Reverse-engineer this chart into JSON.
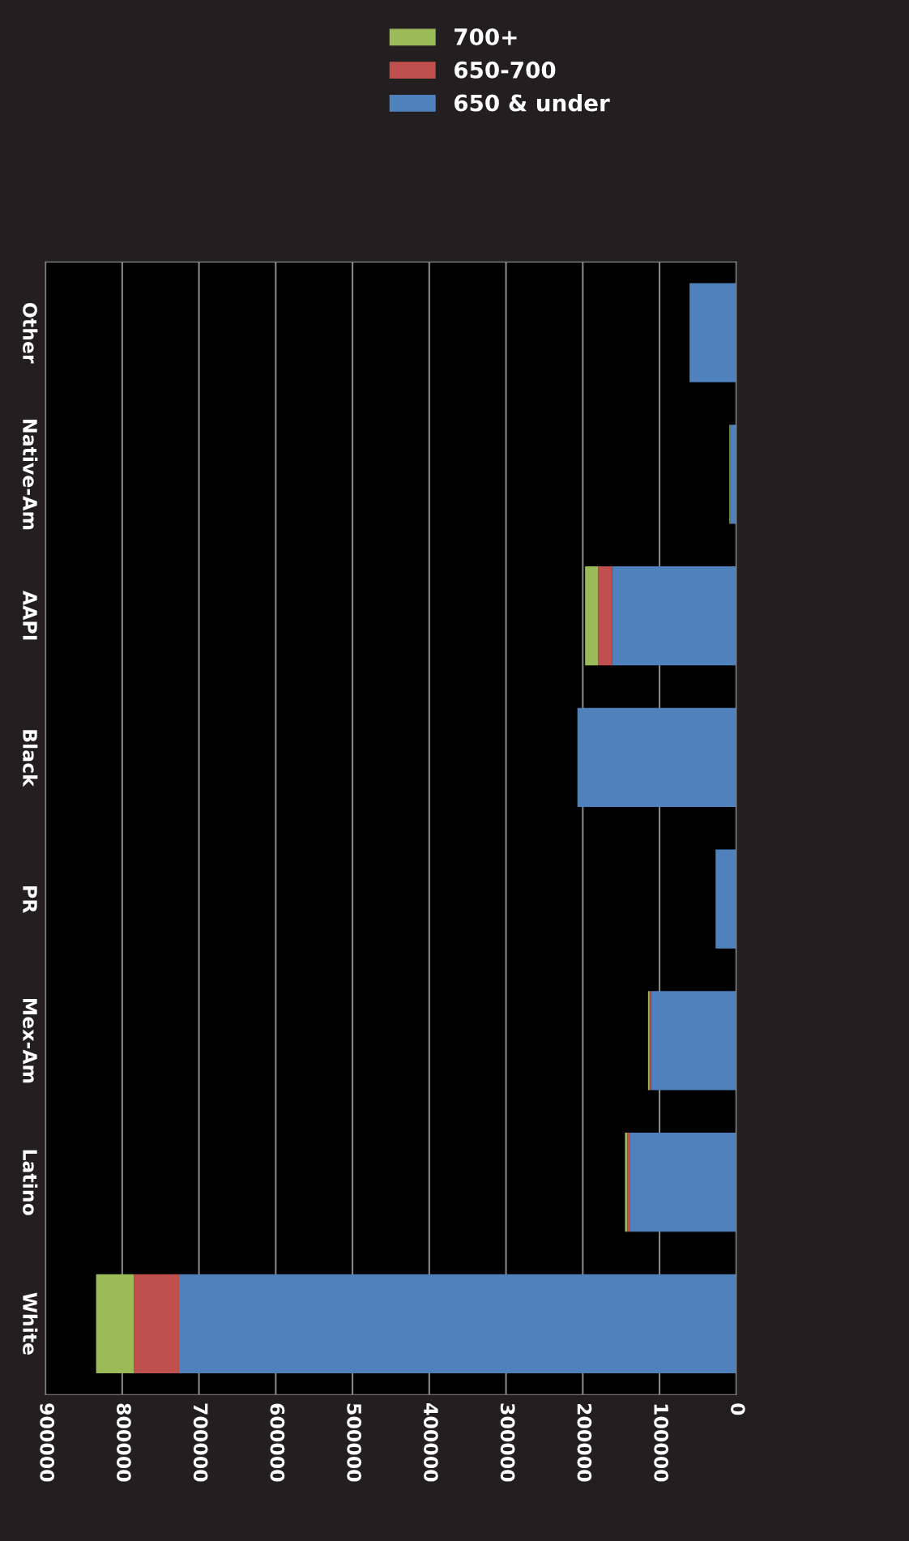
{
  "chart_data": {
    "type": "bar",
    "orientation": "horizontal",
    "stacked": true,
    "categories": [
      "Other",
      "Native-Am",
      "AAPI",
      "Black",
      "PR",
      "Mex-Am",
      "Latino",
      "White"
    ],
    "series": [
      {
        "name": "650 & under",
        "color": "#4f81bd",
        "values": [
          60000,
          8000,
          162000,
          207000,
          27000,
          111000,
          139000,
          726000
        ]
      },
      {
        "name": "650-700",
        "color": "#c0504d",
        "values": [
          1000,
          null,
          18000,
          null,
          null,
          2000,
          3000,
          59000
        ]
      },
      {
        "name": "700+",
        "color": "#9bbb59",
        "values": [
          null,
          1000,
          17000,
          null,
          null,
          2000,
          3000,
          49000
        ]
      }
    ],
    "xlim": [
      900000,
      0
    ],
    "xticks": [
      0,
      100000,
      200000,
      300000,
      400000,
      500000,
      600000,
      700000,
      800000,
      900000
    ],
    "grid": "x",
    "legend": "top"
  }
}
